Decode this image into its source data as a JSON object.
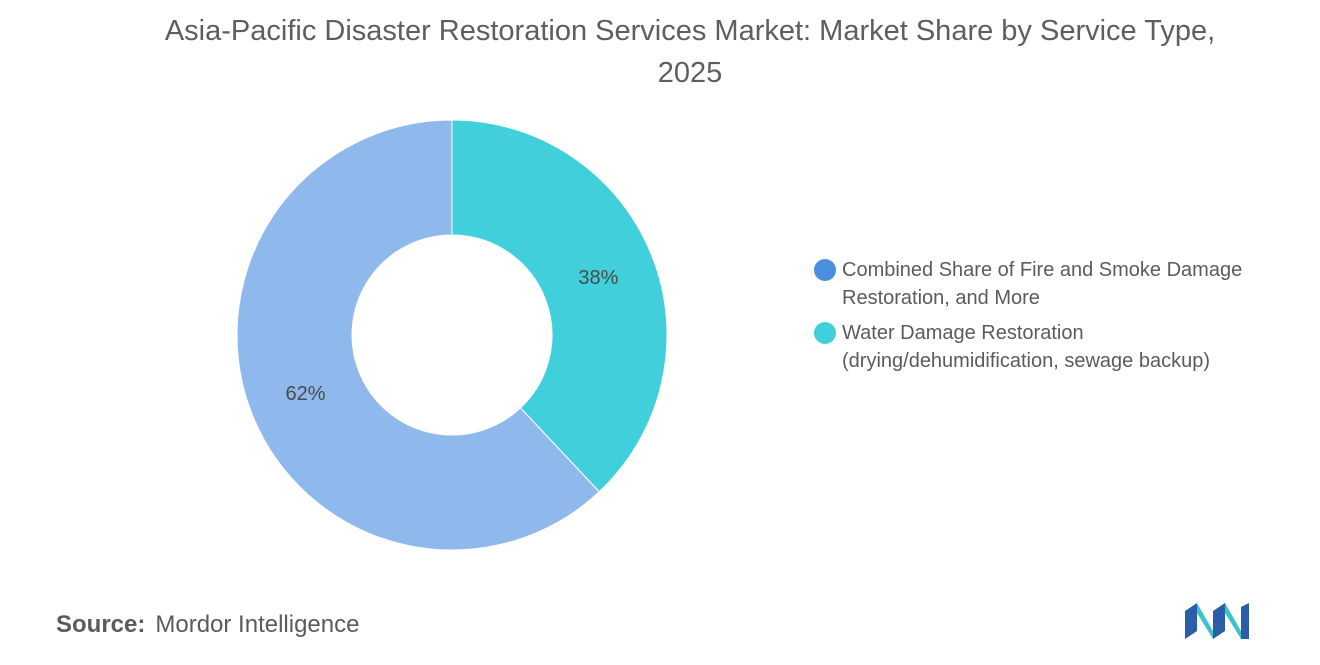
{
  "title": "Asia-Pacific Disaster Restoration Services Market: Market Share by Service Type, 2025",
  "source": {
    "label": "Source:",
    "text": "Mordor Intelligence"
  },
  "logo": {
    "icon": "mordor-intelligence-logo-icon",
    "colors": [
      "#2b5ea8",
      "#3cc1cf"
    ]
  },
  "chart_data": {
    "type": "pie",
    "variant": "donut",
    "title": "Asia-Pacific Disaster Restoration Services Market: Market Share by Service Type, 2025",
    "categories": [
      "Water Damage Restoration (drying/dehumidification, sewage backup)",
      "Combined Share of Fire and Smoke Damage Restoration, and More"
    ],
    "values": [
      38,
      62
    ],
    "value_labels": [
      "38%",
      "62%"
    ],
    "unit": "%",
    "slice_colors": [
      "#40cfdb",
      "#8fb8ec"
    ],
    "legend_placement": "right",
    "legend": [
      {
        "line1": "Combined Share of Fire and Smoke Damage",
        "line2": "Restoration, and More",
        "color": "#4a8ee0"
      },
      {
        "line1": "Water Damage Restoration",
        "line2": "(drying/dehumidification, sewage backup)",
        "color": "#40cfdb"
      }
    ]
  }
}
